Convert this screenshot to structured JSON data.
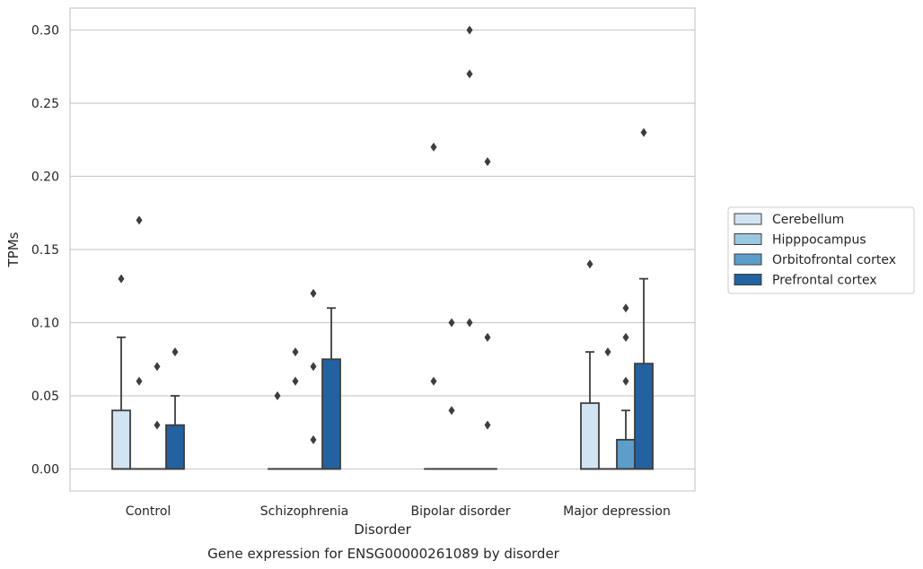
{
  "chart_data": {
    "type": "boxplot",
    "title": "",
    "caption": "Gene expression for ENSG00000261089 by disorder",
    "xlabel": "Disorder",
    "ylabel": "TPMs",
    "ylim": [
      -0.015,
      0.315
    ],
    "yticks": [
      0.0,
      0.05,
      0.1,
      0.15,
      0.2,
      0.25,
      0.3
    ],
    "ytick_labels": [
      "0.00",
      "0.05",
      "0.10",
      "0.15",
      "0.20",
      "0.25",
      "0.30"
    ],
    "grid": "horizontal",
    "legend_position": "outside-right",
    "categories": [
      "Control",
      "Schizophrenia",
      "Bipolar disorder",
      "Major depression"
    ],
    "series": [
      {
        "name": "Cerebellum",
        "color": "#d2e3f1",
        "boxes": [
          {
            "q1": 0.0,
            "median": 0.0,
            "q3": 0.04,
            "whisker_low": 0.0,
            "whisker_high": 0.09,
            "outliers": [
              0.13
            ]
          },
          {
            "q1": 0.0,
            "median": 0.0,
            "q3": 0.0,
            "whisker_low": 0.0,
            "whisker_high": 0.0,
            "outliers": [
              0.05
            ]
          },
          {
            "q1": 0.0,
            "median": 0.0,
            "q3": 0.0,
            "whisker_low": 0.0,
            "whisker_high": 0.0,
            "outliers": [
              0.22,
              0.06
            ]
          },
          {
            "q1": 0.0,
            "median": 0.0,
            "q3": 0.045,
            "whisker_low": 0.0,
            "whisker_high": 0.08,
            "outliers": [
              0.14
            ]
          }
        ]
      },
      {
        "name": "Hipppocampus",
        "color": "#9ac7e0",
        "boxes": [
          {
            "q1": 0.0,
            "median": 0.0,
            "q3": 0.0,
            "whisker_low": 0.0,
            "whisker_high": 0.0,
            "outliers": [
              0.17,
              0.06
            ]
          },
          {
            "q1": 0.0,
            "median": 0.0,
            "q3": 0.0,
            "whisker_low": 0.0,
            "whisker_high": 0.0,
            "outliers": [
              0.08,
              0.06
            ]
          },
          {
            "q1": 0.0,
            "median": 0.0,
            "q3": 0.0,
            "whisker_low": 0.0,
            "whisker_high": 0.0,
            "outliers": [
              0.1,
              0.04
            ]
          },
          {
            "q1": 0.0,
            "median": 0.0,
            "q3": 0.0,
            "whisker_low": 0.0,
            "whisker_high": 0.0,
            "outliers": [
              0.08
            ]
          }
        ]
      },
      {
        "name": "Orbitofrontal cortex",
        "color": "#5a9ec9",
        "boxes": [
          {
            "q1": 0.0,
            "median": 0.0,
            "q3": 0.0,
            "whisker_low": 0.0,
            "whisker_high": 0.0,
            "outliers": [
              0.07,
              0.03
            ]
          },
          {
            "q1": 0.0,
            "median": 0.0,
            "q3": 0.0,
            "whisker_low": 0.0,
            "whisker_high": 0.0,
            "outliers": [
              0.12,
              0.07,
              0.02
            ]
          },
          {
            "q1": 0.0,
            "median": 0.0,
            "q3": 0.0,
            "whisker_low": 0.0,
            "whisker_high": 0.0,
            "outliers": [
              0.3,
              0.27,
              0.1
            ]
          },
          {
            "q1": 0.0,
            "median": 0.0,
            "q3": 0.02,
            "whisker_low": 0.0,
            "whisker_high": 0.04,
            "outliers": [
              0.11,
              0.09,
              0.06
            ]
          }
        ]
      },
      {
        "name": "Prefrontal cortex",
        "color": "#2262a0",
        "boxes": [
          {
            "q1": 0.0,
            "median": 0.0,
            "q3": 0.03,
            "whisker_low": 0.0,
            "whisker_high": 0.05,
            "outliers": [
              0.08
            ]
          },
          {
            "q1": 0.0,
            "median": 0.0,
            "q3": 0.075,
            "whisker_low": 0.0,
            "whisker_high": 0.11,
            "outliers": []
          },
          {
            "q1": 0.0,
            "median": 0.0,
            "q3": 0.0,
            "whisker_low": 0.0,
            "whisker_high": 0.0,
            "outliers": [
              0.21,
              0.09,
              0.03
            ]
          },
          {
            "q1": 0.0,
            "median": 0.0,
            "q3": 0.072,
            "whisker_low": 0.0,
            "whisker_high": 0.13,
            "outliers": [
              0.23
            ]
          }
        ]
      }
    ]
  }
}
